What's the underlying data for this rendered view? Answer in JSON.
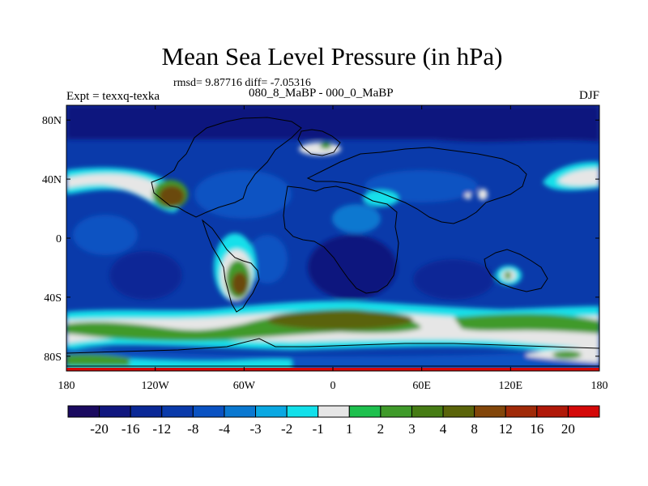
{
  "title": "Mean Sea Level Pressure (in hPa)",
  "stats": "rmsd= 9.87716 diff= -7.05316",
  "experiment": "Expt = texxq-texka",
  "period": "080_8_MaBP - 000_0_MaBP",
  "season": "DJF",
  "lat_ticks": [
    {
      "value": 80,
      "label": "80N"
    },
    {
      "value": 40,
      "label": "40N"
    },
    {
      "value": 0,
      "label": "0"
    },
    {
      "value": -40,
      "label": "40S"
    },
    {
      "value": -80,
      "label": "80S"
    }
  ],
  "lon_ticks": [
    {
      "value": -180,
      "label": "180"
    },
    {
      "value": -120,
      "label": "120W"
    },
    {
      "value": -60,
      "label": "60W"
    },
    {
      "value": 0,
      "label": "0"
    },
    {
      "value": 60,
      "label": "60E"
    },
    {
      "value": 120,
      "label": "120E"
    },
    {
      "value": 180,
      "label": "180"
    }
  ],
  "colorbar": {
    "colors": [
      "#1a0a60",
      "#10167e",
      "#0a2896",
      "#0a3aaa",
      "#0a52c2",
      "#0a78d0",
      "#0aa8e2",
      "#12e0ea",
      "#e6e6e6",
      "#1ec04e",
      "#3f9a2a",
      "#467c14",
      "#5a640a",
      "#82460a",
      "#a02a08",
      "#b01808",
      "#d40808"
    ],
    "labels": [
      "-20",
      "-16",
      "-12",
      "-8",
      "-4",
      "-3",
      "-2",
      "-1",
      "1",
      "2",
      "3",
      "4",
      "8",
      "12",
      "16",
      "20"
    ]
  },
  "colors": {
    "ocean": "#0a3aaa",
    "deep": "#10167e",
    "white": "#e6e6e6",
    "cyan": "#12e0ea",
    "green": "#3f9a2a",
    "brown": "#6a4a10",
    "red": "#d40808"
  }
}
